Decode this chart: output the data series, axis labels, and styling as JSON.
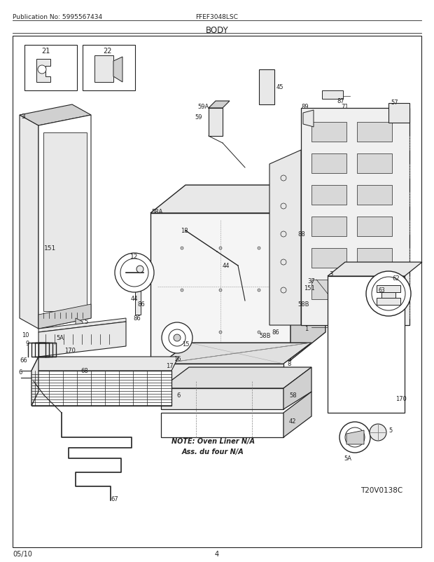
{
  "title": "BODY",
  "pub_no": "Publication No: 5995567434",
  "model": "FFEF3048LSC",
  "date": "05/10",
  "page": "4",
  "diagram_ref": "T20V0138C",
  "note_line1": "NOTE: Oven Liner N/A",
  "note_line2": "Ass. du four N/A",
  "bg_color": "#ffffff",
  "dark": "#222222",
  "mid": "#888888",
  "light": "#cccccc",
  "fill_light": "#e8e8e8",
  "fill_mid": "#d0d0d0"
}
